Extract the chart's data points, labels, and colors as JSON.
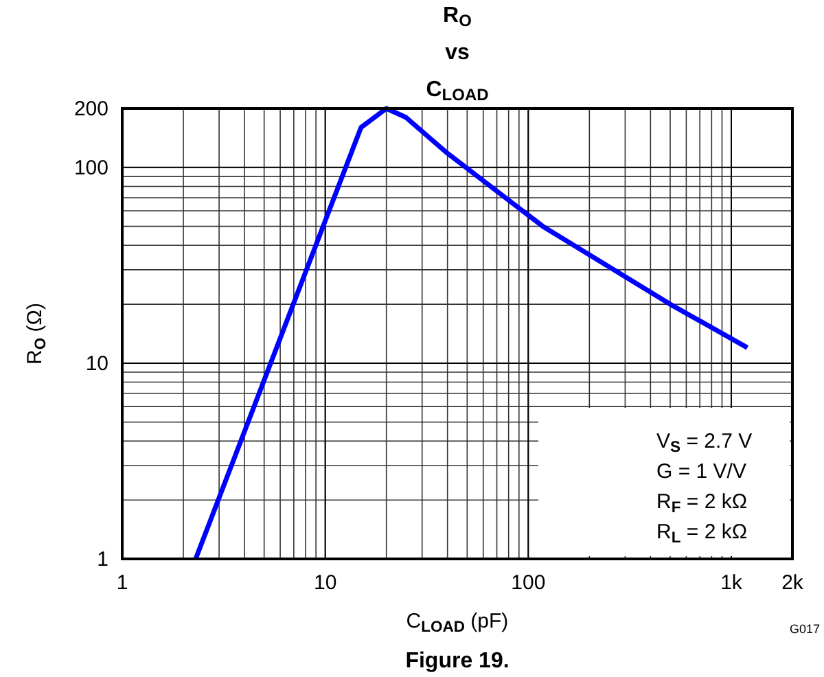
{
  "chart_data": {
    "type": "line",
    "title": "R$_{O}$\nvs\nC$_{LOAD}$",
    "xlabel": "C$_{LOAD}$ (pF)",
    "ylabel": "R$_{O}$ (Ω)",
    "log": "xy",
    "grid": true,
    "marker": "none",
    "line_style": "solid",
    "xlim": [
      1,
      2000
    ],
    "ylim": [
      1,
      200
    ],
    "xticks": [
      1,
      10,
      100,
      {
        "value": 1000,
        "label": "1k"
      },
      {
        "value": 2000,
        "label": "2k"
      }
    ],
    "yticks": [
      1,
      10,
      100,
      200
    ],
    "series": [
      {
        "color": "#0000ff",
        "x": [
          2.3,
          15,
          20,
          25,
          40,
          118,
          500,
          1200
        ],
        "values": [
          1,
          160,
          200,
          180,
          118,
          50,
          20,
          12
        ]
      }
    ],
    "annotations": [
      "V$_{S}$ = 2.7 V\nG = 1 V/V\nR$_{F}$ = 2 kΩ\nR$_{L}$ = 2 kΩ",
      "G017",
      "Figure 19."
    ]
  }
}
